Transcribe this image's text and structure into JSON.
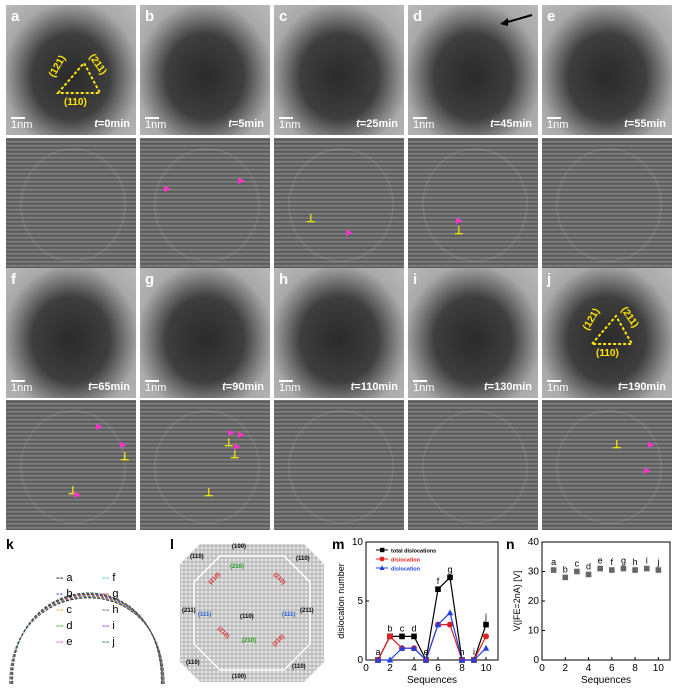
{
  "row1": [
    {
      "id": "a",
      "time": "0min"
    },
    {
      "id": "b",
      "time": "5min"
    },
    {
      "id": "c",
      "time": "25min"
    },
    {
      "id": "d",
      "time": "45min"
    },
    {
      "id": "e",
      "time": "55min"
    }
  ],
  "row3": [
    {
      "id": "f",
      "time": "65min"
    },
    {
      "id": "g",
      "time": "90min"
    },
    {
      "id": "h",
      "time": "110min"
    },
    {
      "id": "i",
      "time": "130min"
    },
    {
      "id": "j",
      "time": "190min"
    }
  ],
  "t_prefix": "t",
  "eq": "=",
  "scale_label": "1nm",
  "facets": {
    "f121": "(121)",
    "f211": "(211)",
    "f110": "(110)"
  },
  "panel_k": {
    "label": "k",
    "legend": [
      {
        "key": "a",
        "color": "#000000"
      },
      {
        "key": "b",
        "color": "#1f3fd8"
      },
      {
        "key": "c",
        "color": "#e0a800"
      },
      {
        "key": "d",
        "color": "#2aa02a"
      },
      {
        "key": "e",
        "color": "#e040c0"
      },
      {
        "key": "f",
        "color": "#26c6e0"
      },
      {
        "key": "g",
        "color": "#e02020"
      },
      {
        "key": "h",
        "color": "#555555"
      },
      {
        "key": "i",
        "color": "#8a2be2"
      },
      {
        "key": "j",
        "color": "#1a6a1a"
      }
    ]
  },
  "panel_l": {
    "label": "l",
    "labels": {
      "t100": "(100)",
      "b100": "(100)",
      "t110": "(110)",
      "b110": "(110)",
      "l211": "(211)",
      "r211": "(211)",
      "c110": "(110)",
      "lblue111": "(111)",
      "rblue111": "(111)",
      "g210a": "(210)",
      "g210b": "(210)",
      "r210a": "(210)",
      "r210b": "(210)",
      "r210c": "(210)",
      "r210d": "(210)",
      "l110": "(110)",
      "r110": "(110)"
    }
  },
  "chart_data": [
    {
      "panel": "m",
      "type": "line",
      "xlabel": "Sequences",
      "ylabel": "dislocation number",
      "xlim": [
        0,
        11
      ],
      "ylim": [
        0,
        10
      ],
      "xticks": [
        0,
        2,
        4,
        6,
        8,
        10
      ],
      "yticks": [
        0,
        5,
        10
      ],
      "x": [
        1,
        2,
        3,
        4,
        5,
        6,
        7,
        8,
        9,
        10
      ],
      "point_labels": [
        "a",
        "b",
        "c",
        "d",
        "e",
        "f",
        "g",
        "h",
        "i",
        "j"
      ],
      "series": [
        {
          "name": "total dislocations",
          "color": "#000000",
          "marker": "square",
          "values": [
            0,
            2,
            2,
            2,
            0,
            6,
            7,
            0,
            0,
            3
          ]
        },
        {
          "name": "dislocation",
          "color": "#e02020",
          "marker": "circle",
          "values": [
            0,
            2,
            1,
            1,
            0,
            3,
            3,
            0,
            0,
            2
          ]
        },
        {
          "name": "dislocation",
          "color": "#2040e0",
          "marker": "triangle",
          "values": [
            0,
            0,
            1,
            1,
            0,
            3,
            4,
            0,
            0,
            1
          ]
        }
      ]
    },
    {
      "panel": "n",
      "type": "scatter",
      "xlabel": "Sequences",
      "ylabel": "V(|FE=2nA) [V]",
      "xlim": [
        0,
        11
      ],
      "ylim": [
        0,
        40
      ],
      "xticks": [
        0,
        2,
        4,
        6,
        8,
        10
      ],
      "yticks": [
        0,
        10,
        20,
        30,
        40
      ],
      "x": [
        1,
        2,
        3,
        4,
        5,
        6,
        7,
        8,
        9,
        10
      ],
      "point_labels": [
        "a",
        "b",
        "c",
        "d",
        "e",
        "f",
        "g",
        "h",
        "i",
        "j"
      ],
      "series": [
        {
          "name": "",
          "color": "#666666",
          "marker": "square",
          "values": [
            30.5,
            28,
            30,
            29,
            31,
            30.5,
            31,
            30.5,
            31,
            30.5
          ]
        }
      ]
    }
  ]
}
